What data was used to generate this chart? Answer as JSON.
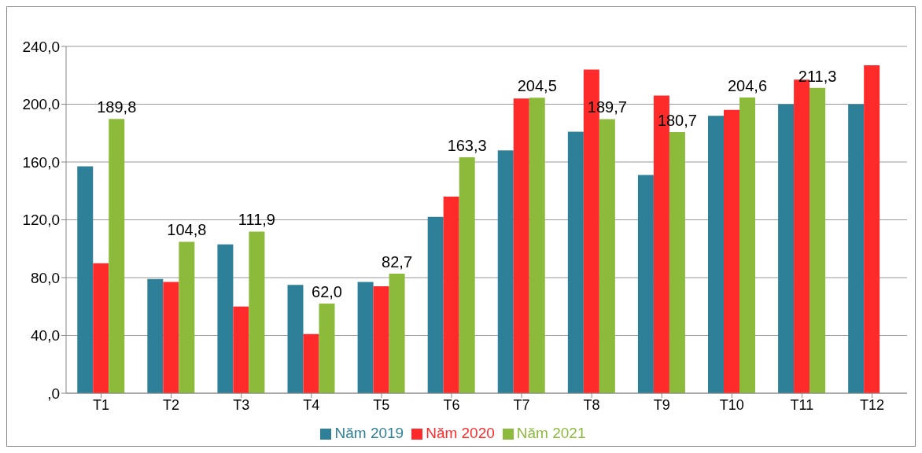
{
  "chart_data": {
    "type": "bar",
    "categories": [
      "T1",
      "T2",
      "T3",
      "T4",
      "T5",
      "T6",
      "T7",
      "T8",
      "T9",
      "T10",
      "T11",
      "T12"
    ],
    "series": [
      {
        "name": "Năm 2019",
        "color": "#2e8099",
        "values": [
          157,
          79,
          103,
          75,
          77,
          122,
          168,
          181,
          151,
          192,
          200,
          200
        ]
      },
      {
        "name": "Năm 2020",
        "color": "#ff2a2a",
        "values": [
          90,
          77,
          60,
          41,
          74,
          136,
          204,
          224,
          206,
          196,
          217,
          227
        ]
      },
      {
        "name": "Năm 2021",
        "color": "#8cbb3c",
        "values": [
          189.8,
          104.8,
          111.9,
          62.0,
          82.7,
          163.3,
          204.5,
          189.7,
          180.7,
          204.6,
          211.3,
          null
        ],
        "value_labels": [
          "189,8",
          "104,8",
          "111,9",
          "62,0",
          "82,7",
          "163,3",
          "204,5",
          "189,7",
          "180,7",
          "204,6",
          "211,3",
          null
        ]
      }
    ],
    "ylim": [
      0,
      240
    ],
    "yticks": [
      {
        "value": 0,
        "label": ",0"
      },
      {
        "value": 40,
        "label": "40,0"
      },
      {
        "value": 80,
        "label": "80,0"
      },
      {
        "value": 120,
        "label": "120,0"
      },
      {
        "value": 160,
        "label": "160,0"
      },
      {
        "value": 200,
        "label": "200,0"
      },
      {
        "value": 240,
        "label": "240,0"
      }
    ],
    "grid": "y",
    "legend": "bottom"
  }
}
